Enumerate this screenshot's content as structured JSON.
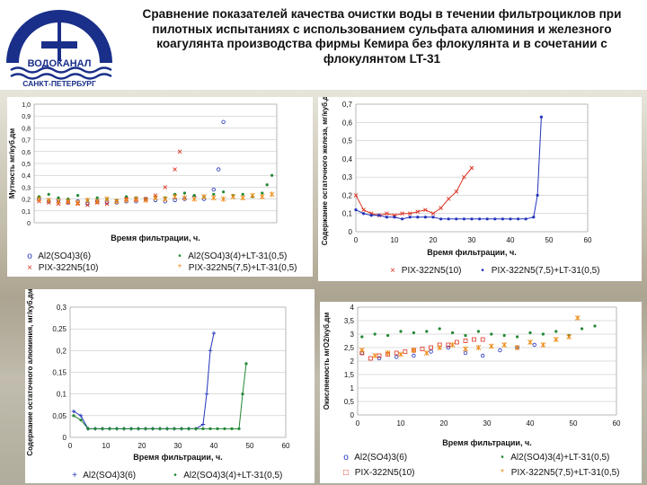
{
  "logo": {
    "brand": "ВОДОКАНАЛ",
    "city": "САНКТ-ПЕТЕРБУРГ"
  },
  "title": "Сравнение показателей качества очистки воды в течении фильтроциклов при пилотных испытаниях с использованием сульфата алюминия и железного коагулянта производства фирмы Кемира без флокулянта и в сочетании с флокулянтом LT-31",
  "colors": {
    "blue": "#2233bb",
    "green": "#228833",
    "red": "#dd3322",
    "orange": "#ee8811",
    "black": "#000000"
  },
  "chart_data": [
    {
      "type": "scatter",
      "id": "turbidity",
      "xlabel": "Время фильтрации, ч.",
      "ylabel": "Мутность мг/куб.дм",
      "ylim": [
        0,
        1.0
      ],
      "yticks": [
        "0",
        "0,1",
        "0,2",
        "0,3",
        "0,4",
        "0,5",
        "0,6",
        "0,7",
        "0,8",
        "0,9",
        "1,0"
      ],
      "xlim": [
        0,
        50
      ],
      "series": [
        {
          "name": "Al2(SO4)3(6)",
          "color": "#2233bb",
          "marker": "circle",
          "x": [
            1,
            3,
            5,
            7,
            9,
            11,
            13,
            15,
            17,
            19,
            21,
            23,
            25,
            27,
            29,
            31,
            33,
            35,
            37,
            38,
            39
          ],
          "y": [
            0.2,
            0.18,
            0.19,
            0.17,
            0.18,
            0.16,
            0.18,
            0.17,
            0.17,
            0.18,
            0.18,
            0.2,
            0.19,
            0.18,
            0.19,
            0.2,
            0.22,
            0.2,
            0.28,
            0.45,
            0.85
          ]
        },
        {
          "name": "Al2(SO4)3(4)+LT-31(0,5)",
          "color": "#228833",
          "marker": "dot",
          "x": [
            1,
            3,
            5,
            7,
            9,
            11,
            13,
            15,
            17,
            19,
            21,
            23,
            25,
            27,
            29,
            31,
            33,
            35,
            37,
            39,
            41,
            43,
            45,
            47,
            48,
            49
          ],
          "y": [
            0.22,
            0.24,
            0.21,
            0.2,
            0.23,
            0.19,
            0.21,
            0.2,
            0.19,
            0.22,
            0.21,
            0.2,
            0.22,
            0.21,
            0.24,
            0.25,
            0.23,
            0.22,
            0.24,
            0.26,
            0.23,
            0.24,
            0.22,
            0.25,
            0.32,
            0.4
          ]
        },
        {
          "name": "PIX-322N5(10)",
          "color": "#dd3322",
          "marker": "x",
          "x": [
            1,
            3,
            5,
            7,
            9,
            11,
            13,
            15,
            17,
            19,
            21,
            23,
            25,
            27,
            29,
            30
          ],
          "y": [
            0.18,
            0.17,
            0.16,
            0.17,
            0.16,
            0.15,
            0.17,
            0.16,
            0.18,
            0.2,
            0.19,
            0.2,
            0.23,
            0.3,
            0.45,
            0.6
          ]
        },
        {
          "name": "PIX-322N5(7,5)+LT-31(0,5)",
          "color": "#ee8811",
          "marker": "star",
          "x": [
            1,
            3,
            5,
            7,
            9,
            11,
            13,
            15,
            17,
            19,
            21,
            23,
            25,
            27,
            29,
            31,
            33,
            35,
            37,
            39,
            41,
            43,
            45,
            47,
            49
          ],
          "y": [
            0.2,
            0.19,
            0.18,
            0.18,
            0.17,
            0.19,
            0.18,
            0.2,
            0.18,
            0.19,
            0.2,
            0.19,
            0.21,
            0.2,
            0.22,
            0.21,
            0.2,
            0.22,
            0.21,
            0.2,
            0.22,
            0.21,
            0.23,
            0.22,
            0.24
          ]
        }
      ]
    },
    {
      "type": "line",
      "id": "iron",
      "xlabel": "Время фильтрации, ч.",
      "ylabel": "Содержание остаточного железа, мг/куб.дм",
      "ylim": [
        0,
        0.7
      ],
      "yticks": [
        "0",
        "0,1",
        "0,2",
        "0,3",
        "0,4",
        "0,5",
        "0,6",
        "0,7"
      ],
      "xlim": [
        0,
        60
      ],
      "xticks": [
        "0",
        "10",
        "20",
        "30",
        "40",
        "50",
        "60"
      ],
      "series": [
        {
          "name": "PIX-322N5(10)",
          "color": "#dd3322",
          "marker": "x",
          "x": [
            0,
            2,
            4,
            6,
            8,
            10,
            12,
            14,
            16,
            18,
            20,
            22,
            24,
            26,
            28,
            30
          ],
          "y": [
            0.2,
            0.12,
            0.1,
            0.09,
            0.1,
            0.09,
            0.1,
            0.1,
            0.11,
            0.12,
            0.1,
            0.13,
            0.18,
            0.22,
            0.3,
            0.35
          ]
        },
        {
          "name": "PIX-322N5(7,5)+LT-31(0,5)",
          "color": "#2233bb",
          "marker": "dot",
          "x": [
            0,
            2,
            4,
            6,
            8,
            10,
            12,
            14,
            16,
            18,
            20,
            22,
            24,
            26,
            28,
            30,
            32,
            34,
            36,
            38,
            40,
            42,
            44,
            46,
            47,
            48
          ],
          "y": [
            0.12,
            0.1,
            0.09,
            0.09,
            0.08,
            0.08,
            0.07,
            0.08,
            0.08,
            0.08,
            0.08,
            0.07,
            0.07,
            0.07,
            0.07,
            0.07,
            0.07,
            0.07,
            0.07,
            0.07,
            0.07,
            0.07,
            0.07,
            0.08,
            0.2,
            0.63
          ]
        }
      ]
    },
    {
      "type": "line",
      "id": "aluminium",
      "xlabel": "Время фильтрации, ч.",
      "ylabel": "Содержание остаточного алюминия, мг/куб.дм",
      "ylim": [
        0,
        0.3
      ],
      "yticks": [
        "0",
        "0,05",
        "0,1",
        "0,15",
        "0,2",
        "0,25",
        "0,3"
      ],
      "xlim": [
        0,
        60
      ],
      "xticks": [
        "0",
        "10",
        "20",
        "30",
        "40",
        "50",
        "60"
      ],
      "series": [
        {
          "name": "Al2(SO4)3(6)",
          "color": "#2233bb",
          "marker": "cross",
          "x": [
            1,
            3,
            5,
            7,
            9,
            11,
            13,
            15,
            17,
            19,
            21,
            23,
            25,
            27,
            29,
            31,
            33,
            35,
            37,
            38,
            39,
            40
          ],
          "y": [
            0.06,
            0.05,
            0.02,
            0.02,
            0.02,
            0.02,
            0.02,
            0.02,
            0.02,
            0.02,
            0.02,
            0.02,
            0.02,
            0.02,
            0.02,
            0.02,
            0.02,
            0.02,
            0.03,
            0.1,
            0.2,
            0.24
          ]
        },
        {
          "name": "Al2(SO4)3(4)+LT-31(0,5)",
          "color": "#228833",
          "marker": "dot",
          "x": [
            1,
            3,
            5,
            7,
            9,
            11,
            13,
            15,
            17,
            19,
            21,
            23,
            25,
            27,
            29,
            31,
            33,
            35,
            37,
            39,
            41,
            43,
            45,
            47,
            48,
            49
          ],
          "y": [
            0.05,
            0.04,
            0.02,
            0.02,
            0.02,
            0.02,
            0.02,
            0.02,
            0.02,
            0.02,
            0.02,
            0.02,
            0.02,
            0.02,
            0.02,
            0.02,
            0.02,
            0.02,
            0.02,
            0.02,
            0.02,
            0.02,
            0.02,
            0.02,
            0.1,
            0.17
          ]
        }
      ]
    },
    {
      "type": "scatter",
      "id": "oxidability",
      "xlabel": "Время фильтрации, ч.",
      "ylabel": "Окисляемость мгО2/куб.дм",
      "ylim": [
        0,
        4
      ],
      "yticks": [
        "0",
        "0,5",
        "1",
        "1,5",
        "2",
        "2,5",
        "3",
        "3,5",
        "4"
      ],
      "xlim": [
        0,
        60
      ],
      "xticks": [
        "0",
        "10",
        "20",
        "30",
        "40",
        "50",
        "60"
      ],
      "series": [
        {
          "name": "Al2(SO4)3(6)",
          "color": "#2233bb",
          "marker": "circle",
          "x": [
            1,
            5,
            9,
            13,
            17,
            21,
            25,
            29,
            33,
            37,
            41
          ],
          "y": [
            2.3,
            2.1,
            2.15,
            2.2,
            2.35,
            2.5,
            2.3,
            2.2,
            2.4,
            2.5,
            2.6
          ]
        },
        {
          "name": "Al2(SO4)3(4)+LT-31(0,5)",
          "color": "#228833",
          "marker": "dot",
          "x": [
            1,
            4,
            7,
            10,
            13,
            16,
            19,
            22,
            25,
            28,
            31,
            34,
            37,
            40,
            43,
            46,
            49,
            52,
            55
          ],
          "y": [
            2.9,
            3.0,
            2.95,
            3.1,
            3.05,
            3.1,
            3.2,
            3.05,
            2.95,
            3.1,
            3.0,
            2.95,
            2.9,
            3.05,
            3.0,
            3.1,
            2.95,
            3.2,
            3.3
          ]
        },
        {
          "name": "PIX-322N5(10)",
          "color": "#dd3322",
          "marker": "square",
          "x": [
            1,
            3,
            5,
            7,
            9,
            11,
            13,
            15,
            17,
            19,
            21,
            23,
            25,
            27,
            29
          ],
          "y": [
            2.3,
            2.1,
            2.2,
            2.25,
            2.3,
            2.35,
            2.4,
            2.45,
            2.5,
            2.6,
            2.6,
            2.7,
            2.75,
            2.8,
            2.8
          ]
        },
        {
          "name": "PIX-322N5(7,5)+LT-31(0,5)",
          "color": "#ee8811",
          "marker": "star",
          "x": [
            1,
            4,
            7,
            10,
            13,
            16,
            19,
            22,
            25,
            28,
            31,
            34,
            37,
            40,
            43,
            46,
            49,
            51
          ],
          "y": [
            2.4,
            2.2,
            2.3,
            2.25,
            2.4,
            2.3,
            2.5,
            2.6,
            2.45,
            2.5,
            2.55,
            2.6,
            2.5,
            2.7,
            2.6,
            2.8,
            2.9,
            3.6
          ]
        }
      ]
    }
  ]
}
